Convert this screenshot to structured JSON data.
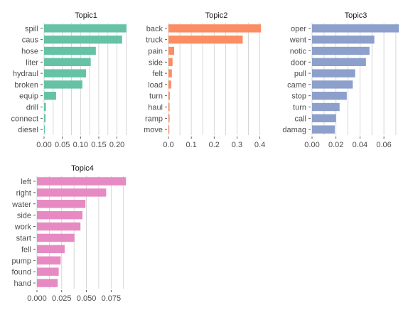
{
  "chart_data": [
    {
      "type": "bar",
      "orientation": "horizontal",
      "title": "Topic1",
      "categories": [
        "spill",
        "caus",
        "hose",
        "liter",
        "hydraul",
        "broken",
        "equip",
        "drill",
        "connect",
        "diesel"
      ],
      "values": [
        0.226,
        0.214,
        0.142,
        0.128,
        0.115,
        0.105,
        0.033,
        0.005,
        0.004,
        0.002
      ],
      "xlim": [
        0,
        0.23
      ],
      "xticks": [
        "0.00",
        "0.05",
        "0.10",
        "0.15",
        "0.20"
      ],
      "xtick_values": [
        0,
        0.05,
        0.1,
        0.15,
        0.2
      ],
      "color": "#66c2a5",
      "grid": true
    },
    {
      "type": "bar",
      "orientation": "horizontal",
      "title": "Topic2",
      "categories": [
        "back",
        "truck",
        "pain",
        "side",
        "felt",
        "load",
        "turn",
        "haul",
        "ramp",
        "move"
      ],
      "values": [
        0.405,
        0.325,
        0.025,
        0.018,
        0.015,
        0.012,
        0.006,
        0.005,
        0.005,
        0.004
      ],
      "xlim": [
        0,
        0.42
      ],
      "xticks": [
        "0.0",
        "0.1",
        "0.2",
        "0.3",
        "0.4"
      ],
      "xtick_values": [
        0,
        0.1,
        0.2,
        0.3,
        0.4
      ],
      "color": "#fc8d62",
      "grid": true
    },
    {
      "type": "bar",
      "orientation": "horizontal",
      "title": "Topic3",
      "categories": [
        "oper",
        "went",
        "notic",
        "door",
        "pull",
        "came",
        "stop",
        "turn",
        "call",
        "damag"
      ],
      "values": [
        0.0725,
        0.052,
        0.048,
        0.045,
        0.036,
        0.034,
        0.029,
        0.023,
        0.02,
        0.019
      ],
      "xlim": [
        0,
        0.073
      ],
      "xticks": [
        "0.00",
        "0.02",
        "0.04",
        "0.06"
      ],
      "xtick_values": [
        0,
        0.02,
        0.04,
        0.06
      ],
      "color": "#8da0cb",
      "grid": true
    },
    {
      "type": "bar",
      "orientation": "horizontal",
      "title": "Topic4",
      "categories": [
        "left",
        "right",
        "water",
        "side",
        "work",
        "start",
        "fell",
        "pump",
        "found",
        "hand"
      ],
      "values": [
        0.09,
        0.07,
        0.049,
        0.046,
        0.044,
        0.038,
        0.028,
        0.024,
        0.022,
        0.021
      ],
      "xlim": [
        0,
        0.092
      ],
      "xticks": [
        "0.000",
        "0.025",
        "0.050",
        "0.075"
      ],
      "xtick_values": [
        0,
        0.025,
        0.05,
        0.075
      ],
      "color": "#e78ac3",
      "grid": true
    }
  ]
}
